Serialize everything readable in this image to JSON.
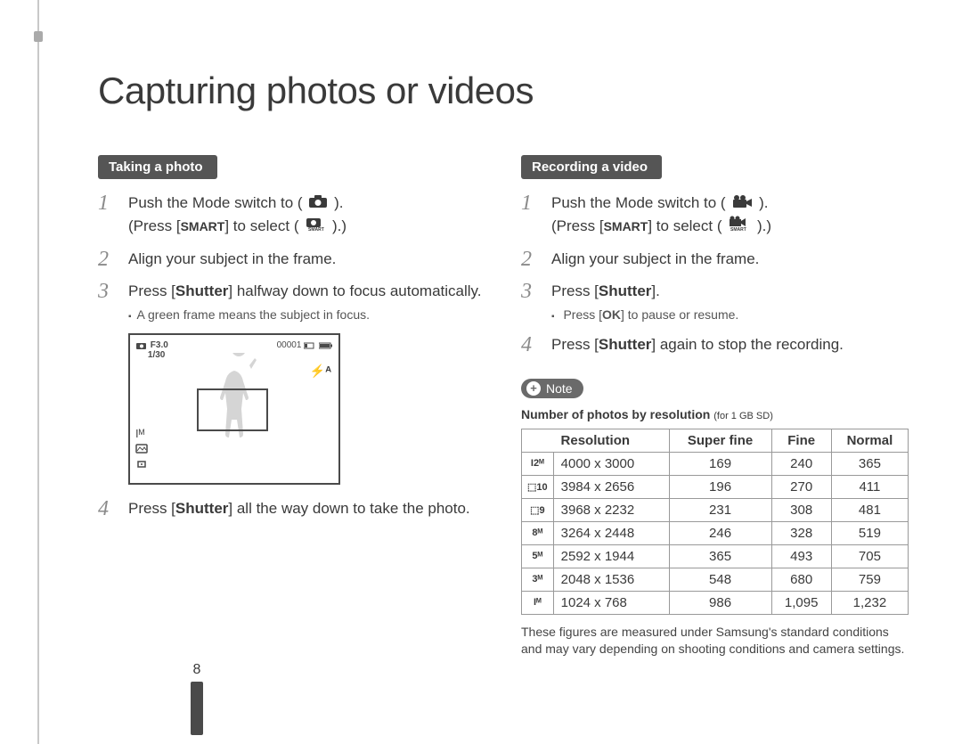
{
  "page": {
    "title": "Capturing photos or videos",
    "number": "8"
  },
  "left": {
    "heading": "Taking a photo",
    "steps": {
      "s1a": "Push the Mode switch to (",
      "s1b": ").",
      "s1c": "(Press [",
      "smart": "SMART",
      "s1d": "] to select (",
      "s1e": ").)",
      "s2": "Align your subject in the frame.",
      "s3a": "Press [",
      "shutter": "Shutter",
      "s3b": "] halfway down to focus automatically.",
      "s3_sub": "A green frame means the subject in focus.",
      "s4a": "Press [",
      "s4b": "] all the way down to take the photo."
    },
    "lcd": {
      "top_left_line1": "F3.0",
      "top_left_line2": "1/30",
      "top_right": "00001",
      "flash": "⚡ᴬ",
      "size_icon": "Iᴹ"
    }
  },
  "right": {
    "heading": "Recording a video",
    "steps": {
      "s1a": "Push the Mode switch to (",
      "s1b": ").",
      "s1c": "(Press [",
      "smart": "SMART",
      "s1d": "] to select (",
      "s1e": ").)",
      "s2": "Align your subject in the frame.",
      "s3a": "Press [",
      "shutter": "Shutter",
      "s3b": "].",
      "s3_sub_a": "Press [",
      "ok": "OK",
      "s3_sub_b": "] to pause or resume.",
      "s4a": "Press [",
      "s4b": "] again to stop the recording."
    },
    "note_label": "Note",
    "note_title_bold": "Number of photos by resolution",
    "note_title_sub": "(for 1 GB SD)",
    "table": {
      "headers": {
        "res": "Resolution",
        "sf": "Super fine",
        "f": "Fine",
        "n": "Normal"
      },
      "rows": [
        {
          "icon": "I2ᴹ",
          "dim": "4000 x 3000",
          "sf": "169",
          "f": "240",
          "n": "365"
        },
        {
          "icon": "⬚10",
          "dim": "3984 x 2656",
          "sf": "196",
          "f": "270",
          "n": "411"
        },
        {
          "icon": "⬚9",
          "dim": "3968 x 2232",
          "sf": "231",
          "f": "308",
          "n": "481"
        },
        {
          "icon": "8ᴹ",
          "dim": "3264 x 2448",
          "sf": "246",
          "f": "328",
          "n": "519"
        },
        {
          "icon": "5ᴹ",
          "dim": "2592 x 1944",
          "sf": "365",
          "f": "493",
          "n": "705"
        },
        {
          "icon": "3ᴹ",
          "dim": "2048 x 1536",
          "sf": "548",
          "f": "680",
          "n": "759"
        },
        {
          "icon": "Iᴹ",
          "dim": "1024 x 768",
          "sf": "986",
          "f": "1,095",
          "n": "1,232"
        }
      ]
    },
    "footnote": "These figures are measured under Samsung's standard conditions and may vary depending on shooting conditions and camera settings."
  },
  "icons": {
    "camera_glyph": "📷",
    "video_glyph": "📹",
    "smart_auto": "ᔕᴀᴜᴛᴏ"
  },
  "colors": {
    "heading_bg": "#555555",
    "text": "#3a3a3a",
    "border": "#999999"
  }
}
